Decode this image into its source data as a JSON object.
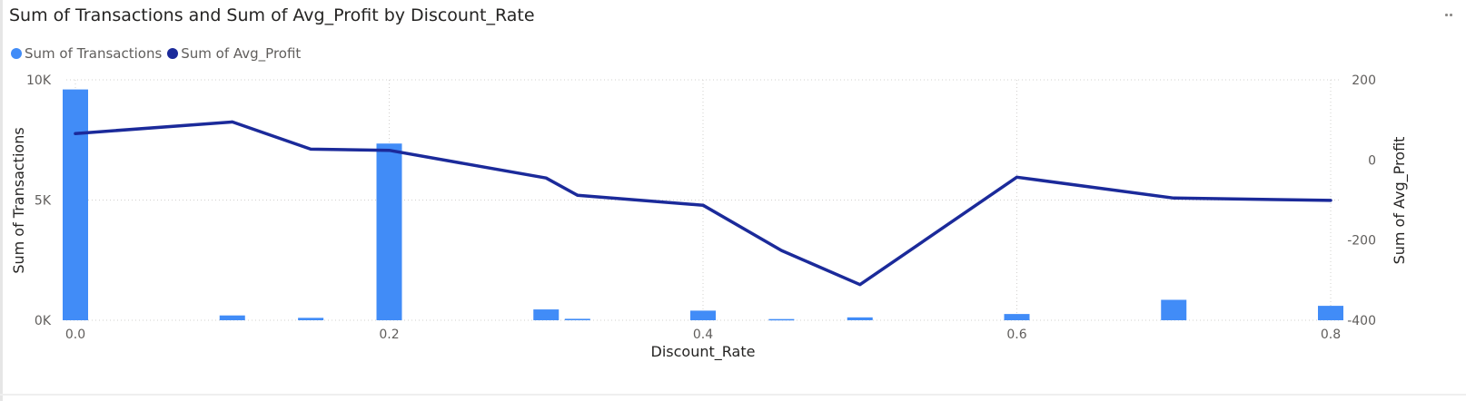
{
  "title": "Sum of Transactions and Sum of Avg_Profit by Discount_Rate",
  "legend": [
    {
      "name": "Sum of Transactions",
      "color": "#418cf7"
    },
    {
      "name": "Sum of Avg_Profit",
      "color": "#1b2a9a"
    }
  ],
  "more_icon": "more-options-icon",
  "chart_data": {
    "type": "bar+line",
    "title": "Sum of Transactions and Sum of Avg_Profit by Discount_Rate",
    "xlabel": "Discount_Rate",
    "ylabel": "Sum of Transactions",
    "y2label": "Sum of Avg_Profit",
    "xlim": [
      0,
      0.8
    ],
    "ylim": [
      0,
      10000
    ],
    "y2lim": [
      -400,
      200
    ],
    "x_ticks": [
      0,
      0.2,
      0.4,
      0.6,
      0.8
    ],
    "x_tick_labels": [
      "0.0",
      "0.2",
      "0.4",
      "0.6",
      "0.8"
    ],
    "y_ticks": [
      0,
      5000,
      10000
    ],
    "y_tick_labels": [
      "0K",
      "5K",
      "10K"
    ],
    "y2_ticks": [
      -400,
      -200,
      0,
      200
    ],
    "y2_tick_labels": [
      "-400",
      "-200",
      "0",
      "200"
    ],
    "grid": true,
    "legend_position": "top-left",
    "series": [
      {
        "name": "Sum of Transactions",
        "type": "bar",
        "axis": "left",
        "color": "#418cf7",
        "points": [
          {
            "x": 0.0,
            "y": 9600
          },
          {
            "x": 0.1,
            "y": 200
          },
          {
            "x": 0.15,
            "y": 100
          },
          {
            "x": 0.2,
            "y": 7350
          },
          {
            "x": 0.3,
            "y": 450
          },
          {
            "x": 0.32,
            "y": 60
          },
          {
            "x": 0.4,
            "y": 400
          },
          {
            "x": 0.45,
            "y": 50
          },
          {
            "x": 0.5,
            "y": 120
          },
          {
            "x": 0.6,
            "y": 260
          },
          {
            "x": 0.7,
            "y": 850
          },
          {
            "x": 0.8,
            "y": 600
          }
        ]
      },
      {
        "name": "Sum of Avg_Profit",
        "type": "line",
        "axis": "right",
        "color": "#1b2a9a",
        "points": [
          {
            "x": 0.0,
            "y": 66
          },
          {
            "x": 0.1,
            "y": 95
          },
          {
            "x": 0.15,
            "y": 27
          },
          {
            "x": 0.2,
            "y": 24
          },
          {
            "x": 0.3,
            "y": -45
          },
          {
            "x": 0.32,
            "y": -88
          },
          {
            "x": 0.4,
            "y": -113
          },
          {
            "x": 0.45,
            "y": -226
          },
          {
            "x": 0.5,
            "y": -311
          },
          {
            "x": 0.6,
            "y": -43
          },
          {
            "x": 0.7,
            "y": -95
          },
          {
            "x": 0.8,
            "y": -101
          }
        ]
      }
    ]
  }
}
